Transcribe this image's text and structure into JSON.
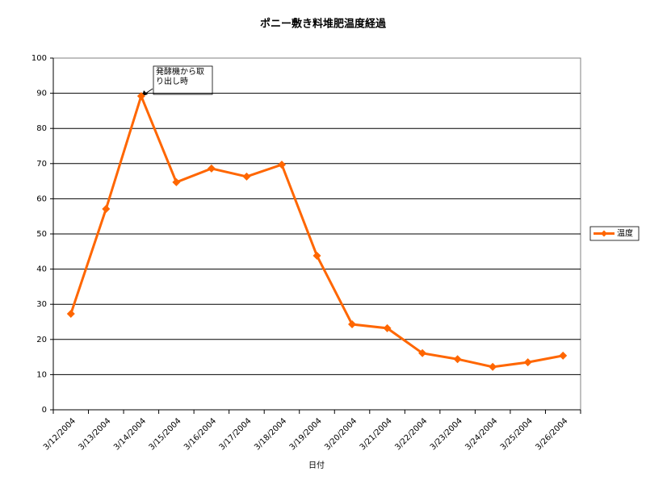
{
  "chart_data": {
    "type": "line",
    "title": "ポニー敷き料堆肥温度経過",
    "x_label": "日付",
    "annotation": "発酵機から取り出し時",
    "categories": [
      "3/12/2004",
      "3/13/2004",
      "3/14/2004",
      "3/15/2004",
      "3/16/2004",
      "3/17/2004",
      "3/18/2004",
      "3/19/2004",
      "3/20/2004",
      "3/21/2004",
      "3/22/2004",
      "3/23/2004",
      "3/24/2004",
      "3/25/2004",
      "3/26/2004"
    ],
    "series": [
      {
        "name": "温度",
        "color": "#ff6600",
        "values": [
          27.3,
          57.1,
          89.2,
          64.7,
          68.6,
          66.3,
          69.7,
          43.8,
          24.3,
          23.2,
          16.1,
          14.4,
          12.2,
          13.5,
          15.4
        ]
      }
    ],
    "ylim": [
      0,
      100
    ],
    "yticks": [
      0,
      10,
      20,
      30,
      40,
      50,
      60,
      70,
      80,
      90,
      100
    ],
    "grid": true,
    "legend": "right"
  }
}
